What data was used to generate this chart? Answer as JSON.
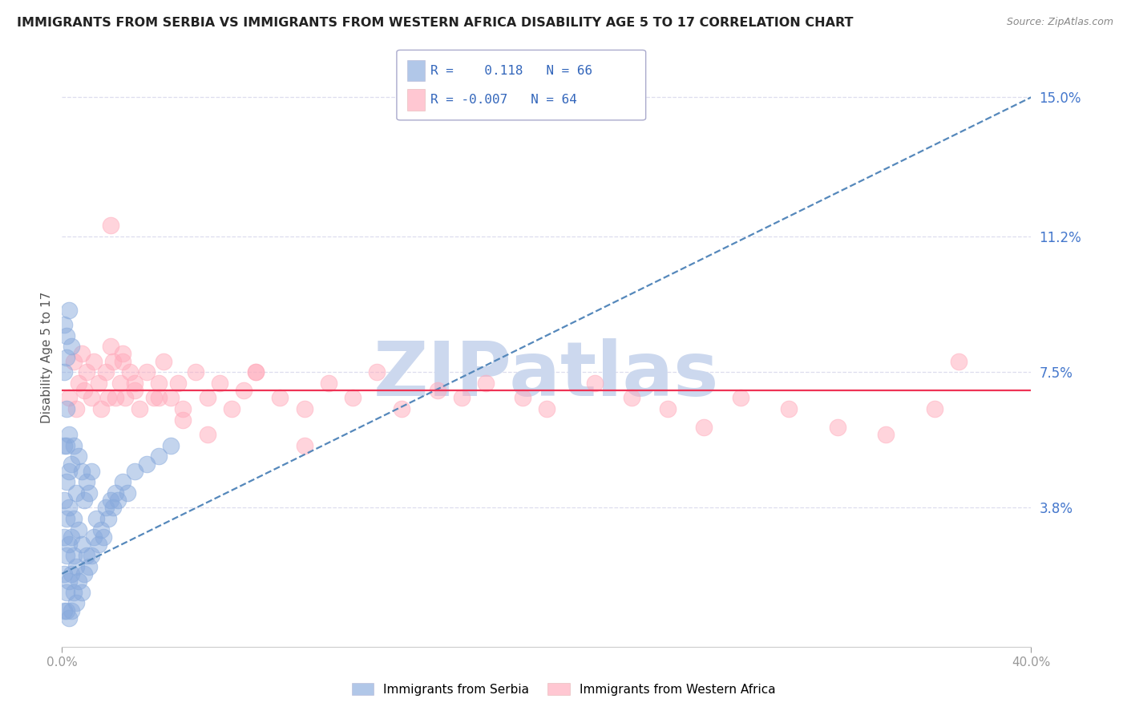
{
  "title": "IMMIGRANTS FROM SERBIA VS IMMIGRANTS FROM WESTERN AFRICA DISABILITY AGE 5 TO 17 CORRELATION CHART",
  "source": "Source: ZipAtlas.com",
  "ylabel": "Disability Age 5 to 17",
  "xlim": [
    0.0,
    0.4
  ],
  "ylim": [
    0.0,
    0.158
  ],
  "xtick_positions": [
    0.0,
    0.4
  ],
  "xticklabels": [
    "0.0%",
    "40.0%"
  ],
  "ytick_positions": [
    0.038,
    0.075,
    0.112,
    0.15
  ],
  "ytick_labels": [
    "3.8%",
    "7.5%",
    "11.2%",
    "15.0%"
  ],
  "legend_serbia_R": "0.118",
  "legend_serbia_N": "66",
  "legend_wa_R": "-0.007",
  "legend_wa_N": "64",
  "color_serbia": "#88aadd",
  "color_wa": "#ffaabb",
  "trendline_serbia_color": "#5588bb",
  "trendline_wa_color": "#ee3355",
  "grid_color": "#ddddee",
  "watermark_color": "#ccd8ee",
  "serbia_x": [
    0.001,
    0.001,
    0.001,
    0.001,
    0.001,
    0.002,
    0.002,
    0.002,
    0.002,
    0.002,
    0.002,
    0.002,
    0.003,
    0.003,
    0.003,
    0.003,
    0.003,
    0.003,
    0.004,
    0.004,
    0.004,
    0.004,
    0.005,
    0.005,
    0.005,
    0.005,
    0.006,
    0.006,
    0.006,
    0.007,
    0.007,
    0.007,
    0.008,
    0.008,
    0.008,
    0.009,
    0.009,
    0.01,
    0.01,
    0.011,
    0.011,
    0.012,
    0.012,
    0.013,
    0.014,
    0.015,
    0.016,
    0.017,
    0.018,
    0.019,
    0.02,
    0.021,
    0.022,
    0.023,
    0.025,
    0.027,
    0.03,
    0.035,
    0.04,
    0.045,
    0.001,
    0.002,
    0.003,
    0.004,
    0.001,
    0.002
  ],
  "serbia_y": [
    0.01,
    0.02,
    0.03,
    0.04,
    0.055,
    0.01,
    0.015,
    0.025,
    0.035,
    0.045,
    0.055,
    0.065,
    0.008,
    0.018,
    0.028,
    0.038,
    0.048,
    0.058,
    0.01,
    0.02,
    0.03,
    0.05,
    0.015,
    0.025,
    0.035,
    0.055,
    0.012,
    0.022,
    0.042,
    0.018,
    0.032,
    0.052,
    0.015,
    0.028,
    0.048,
    0.02,
    0.04,
    0.025,
    0.045,
    0.022,
    0.042,
    0.025,
    0.048,
    0.03,
    0.035,
    0.028,
    0.032,
    0.03,
    0.038,
    0.035,
    0.04,
    0.038,
    0.042,
    0.04,
    0.045,
    0.042,
    0.048,
    0.05,
    0.052,
    0.055,
    0.088,
    0.085,
    0.092,
    0.082,
    0.075,
    0.079
  ],
  "wa_x": [
    0.003,
    0.005,
    0.006,
    0.007,
    0.008,
    0.009,
    0.01,
    0.012,
    0.013,
    0.015,
    0.016,
    0.018,
    0.019,
    0.02,
    0.021,
    0.022,
    0.024,
    0.025,
    0.026,
    0.028,
    0.03,
    0.032,
    0.035,
    0.038,
    0.04,
    0.042,
    0.045,
    0.048,
    0.05,
    0.055,
    0.06,
    0.065,
    0.07,
    0.075,
    0.08,
    0.09,
    0.1,
    0.11,
    0.12,
    0.13,
    0.14,
    0.155,
    0.165,
    0.175,
    0.19,
    0.2,
    0.22,
    0.235,
    0.25,
    0.265,
    0.28,
    0.3,
    0.32,
    0.34,
    0.36,
    0.02,
    0.025,
    0.03,
    0.04,
    0.05,
    0.06,
    0.08,
    0.1,
    0.37
  ],
  "wa_y": [
    0.068,
    0.078,
    0.065,
    0.072,
    0.08,
    0.07,
    0.075,
    0.068,
    0.078,
    0.072,
    0.065,
    0.075,
    0.068,
    0.115,
    0.078,
    0.068,
    0.072,
    0.08,
    0.068,
    0.075,
    0.07,
    0.065,
    0.075,
    0.068,
    0.072,
    0.078,
    0.068,
    0.072,
    0.065,
    0.075,
    0.068,
    0.072,
    0.065,
    0.07,
    0.075,
    0.068,
    0.065,
    0.072,
    0.068,
    0.075,
    0.065,
    0.07,
    0.068,
    0.072,
    0.068,
    0.065,
    0.072,
    0.068,
    0.065,
    0.06,
    0.068,
    0.065,
    0.06,
    0.058,
    0.065,
    0.082,
    0.078,
    0.072,
    0.068,
    0.062,
    0.058,
    0.075,
    0.055,
    0.078
  ],
  "trendline_serbia_x0": 0.0,
  "trendline_serbia_x1": 0.4,
  "trendline_serbia_y0": 0.02,
  "trendline_serbia_y1": 0.15,
  "trendline_wa_x0": 0.0,
  "trendline_wa_x1": 0.4,
  "trendline_wa_y0": 0.07,
  "trendline_wa_y1": 0.07
}
